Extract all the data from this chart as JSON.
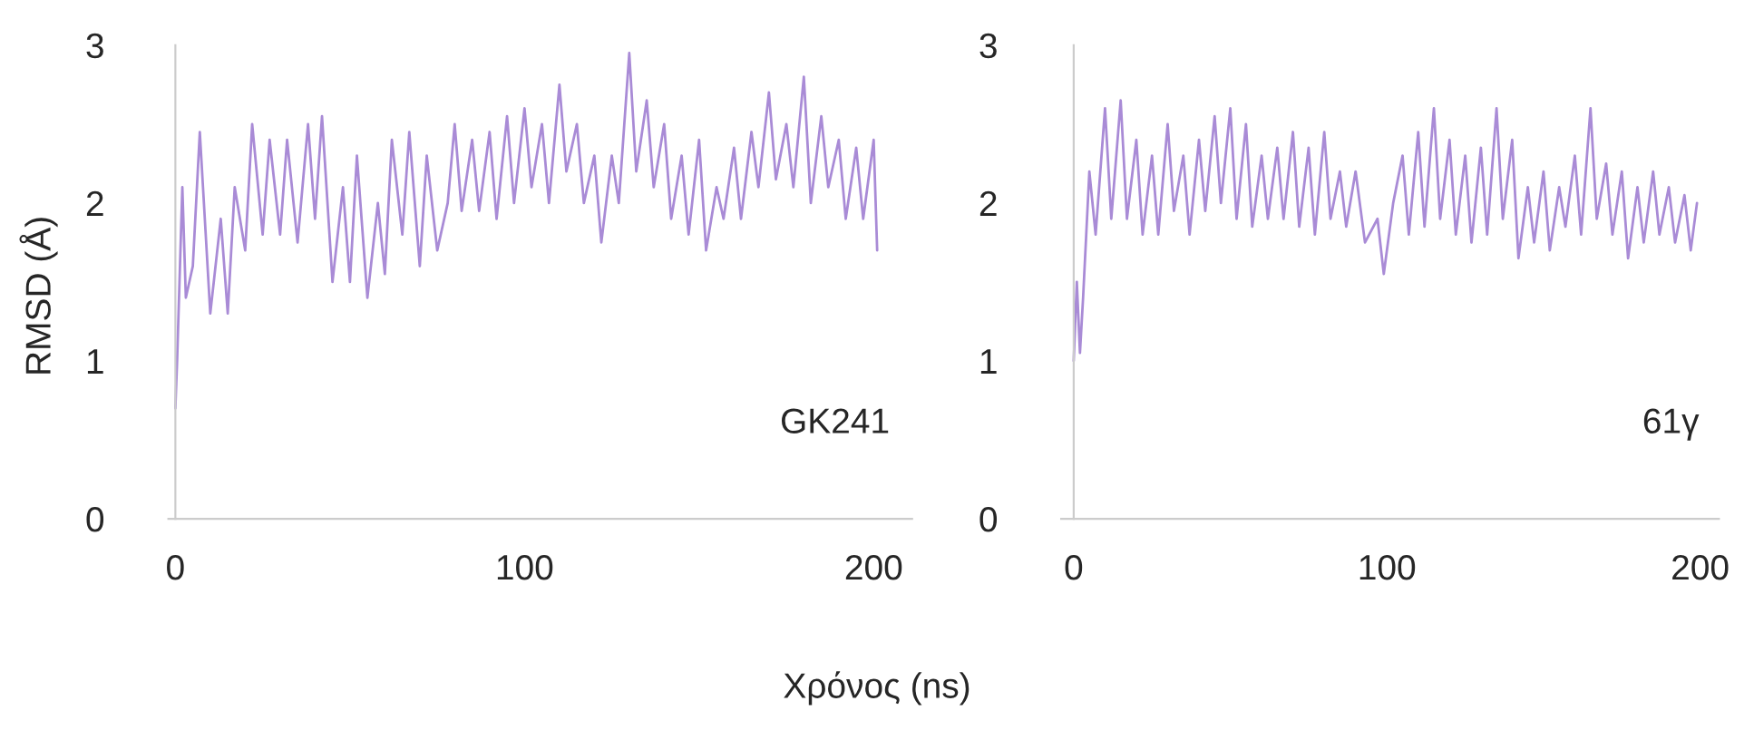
{
  "chart_data": [
    {
      "type": "line",
      "ylabel": "RMSD (Å)",
      "xlabel": "Χρόνος (ns)",
      "annotations": [
        "GK241"
      ],
      "xlim": [
        -2,
        211
      ],
      "ylim": [
        0,
        3
      ],
      "xticks": [
        0,
        100,
        200
      ],
      "yticks": [
        0,
        1,
        2,
        3
      ],
      "grid": false,
      "legend": false,
      "series": [
        {
          "color": "#a98bd6",
          "x": [
            0,
            0.5,
            2,
            3,
            5,
            7,
            10,
            13,
            15,
            17,
            20,
            22,
            25,
            27,
            30,
            32,
            35,
            38,
            40,
            42,
            45,
            48,
            50,
            52,
            55,
            58,
            60,
            62,
            65,
            67,
            70,
            72,
            75,
            78,
            80,
            82,
            85,
            87,
            90,
            92,
            95,
            97,
            100,
            102,
            105,
            107,
            110,
            112,
            115,
            117,
            120,
            122,
            125,
            127,
            130,
            132,
            135,
            137,
            140,
            142,
            145,
            147,
            150,
            152,
            155,
            157,
            160,
            162,
            165,
            167,
            170,
            172,
            175,
            177,
            180,
            182,
            185,
            187,
            190,
            192,
            195,
            197,
            200,
            201
          ],
          "values": [
            0.7,
            1.0,
            2.1,
            1.4,
            1.6,
            2.45,
            1.3,
            1.9,
            1.3,
            2.1,
            1.7,
            2.5,
            1.8,
            2.4,
            1.8,
            2.4,
            1.75,
            2.5,
            1.9,
            2.55,
            1.5,
            2.1,
            1.5,
            2.3,
            1.4,
            2.0,
            1.55,
            2.4,
            1.8,
            2.45,
            1.6,
            2.3,
            1.7,
            2.0,
            2.5,
            1.95,
            2.4,
            1.95,
            2.45,
            1.9,
            2.55,
            2.0,
            2.6,
            2.1,
            2.5,
            2.0,
            2.75,
            2.2,
            2.5,
            2.0,
            2.3,
            1.75,
            2.3,
            2.0,
            2.95,
            2.2,
            2.65,
            2.1,
            2.5,
            1.9,
            2.3,
            1.8,
            2.4,
            1.7,
            2.1,
            1.9,
            2.35,
            1.9,
            2.45,
            2.1,
            2.7,
            2.15,
            2.5,
            2.1,
            2.8,
            2.0,
            2.55,
            2.1,
            2.4,
            1.9,
            2.35,
            1.9,
            2.4,
            1.7
          ]
        }
      ]
    },
    {
      "type": "line",
      "annotations": [
        "61γ"
      ],
      "xlim": [
        -4,
        206
      ],
      "ylim": [
        0,
        3
      ],
      "xticks": [
        0,
        100,
        200
      ],
      "yticks": [
        0,
        1,
        2,
        3
      ],
      "grid": false,
      "legend": false,
      "series": [
        {
          "color": "#a98bd6",
          "x": [
            0,
            1,
            2,
            3,
            5,
            7,
            10,
            12,
            15,
            17,
            20,
            22,
            25,
            27,
            30,
            32,
            35,
            37,
            40,
            42,
            45,
            47,
            50,
            52,
            55,
            57,
            60,
            62,
            65,
            67,
            70,
            72,
            75,
            77,
            80,
            82,
            85,
            87,
            90,
            93,
            97,
            99,
            102,
            105,
            107,
            110,
            112,
            115,
            117,
            120,
            122,
            125,
            127,
            130,
            132,
            135,
            137,
            140,
            142,
            145,
            147,
            150,
            152,
            155,
            157,
            160,
            162,
            165,
            167,
            170,
            172,
            175,
            177,
            180,
            182,
            185,
            187,
            190,
            192,
            195,
            197,
            199
          ],
          "values": [
            1.0,
            1.5,
            1.05,
            1.4,
            2.2,
            1.8,
            2.6,
            1.9,
            2.65,
            1.9,
            2.4,
            1.8,
            2.3,
            1.8,
            2.5,
            1.95,
            2.3,
            1.8,
            2.4,
            1.95,
            2.55,
            2.0,
            2.6,
            1.9,
            2.5,
            1.85,
            2.3,
            1.9,
            2.35,
            1.9,
            2.45,
            1.85,
            2.35,
            1.8,
            2.45,
            1.9,
            2.2,
            1.85,
            2.2,
            1.75,
            1.9,
            1.55,
            2.0,
            2.3,
            1.8,
            2.45,
            1.85,
            2.6,
            1.9,
            2.4,
            1.8,
            2.3,
            1.75,
            2.35,
            1.8,
            2.6,
            1.9,
            2.4,
            1.65,
            2.1,
            1.75,
            2.2,
            1.7,
            2.1,
            1.85,
            2.3,
            1.8,
            2.6,
            1.9,
            2.25,
            1.8,
            2.2,
            1.65,
            2.1,
            1.75,
            2.2,
            1.8,
            2.1,
            1.75,
            2.05,
            1.7,
            2.0
          ]
        }
      ]
    }
  ]
}
